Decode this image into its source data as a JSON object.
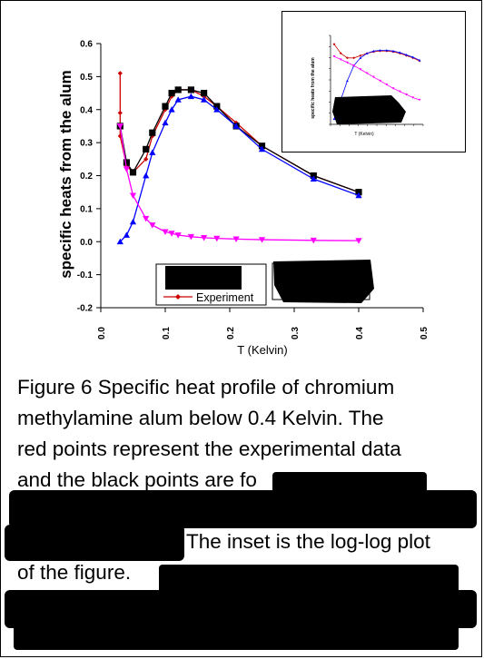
{
  "chart_data": [
    {
      "type": "line",
      "title": "",
      "xlabel": "T  (Kelvin)",
      "ylabel": "specific heats from the alum",
      "xlim": [
        0.0,
        0.5
      ],
      "ylim": [
        -0.2,
        0.6
      ],
      "x_ticks": [
        "0.0",
        "0.1",
        "0.2",
        "0.3",
        "0.4",
        "0.5"
      ],
      "y_ticks": [
        "-0.2",
        "-0.1",
        "0.0",
        "0.1",
        "0.2",
        "0.3",
        "0.4",
        "0.5",
        "0.6"
      ],
      "legend_placement": "bottom-center",
      "series": [
        {
          "name": "Experiment",
          "color": "#cc0000",
          "marker": "diamond",
          "x": [
            0.03,
            0.03,
            0.03,
            0.04,
            0.05,
            0.07,
            0.08,
            0.1,
            0.11,
            0.12,
            0.14,
            0.16,
            0.18,
            0.21,
            0.25,
            0.33,
            0.4
          ],
          "y": [
            0.51,
            0.39,
            0.32,
            0.23,
            0.21,
            0.25,
            0.32,
            0.4,
            0.44,
            0.46,
            0.46,
            0.44,
            0.41,
            0.36,
            0.29,
            0.2,
            0.15
          ]
        },
        {
          "color": "#000000",
          "marker": "square",
          "x": [
            0.03,
            0.04,
            0.05,
            0.07,
            0.08,
            0.1,
            0.11,
            0.12,
            0.14,
            0.16,
            0.18,
            0.21,
            0.25,
            0.33,
            0.4
          ],
          "y": [
            0.35,
            0.24,
            0.21,
            0.28,
            0.33,
            0.41,
            0.45,
            0.46,
            0.46,
            0.45,
            0.41,
            0.35,
            0.29,
            0.2,
            0.15
          ]
        },
        {
          "color": "#0000ff",
          "marker": "triangle-up",
          "x": [
            0.03,
            0.04,
            0.05,
            0.07,
            0.08,
            0.1,
            0.11,
            0.12,
            0.14,
            0.16,
            0.18,
            0.21,
            0.25,
            0.33,
            0.4
          ],
          "y": [
            0.0,
            0.02,
            0.06,
            0.2,
            0.27,
            0.36,
            0.4,
            0.43,
            0.44,
            0.43,
            0.4,
            0.35,
            0.28,
            0.19,
            0.14
          ]
        },
        {
          "color": "#ff00ff",
          "marker": "triangle-down",
          "x": [
            0.03,
            0.04,
            0.05,
            0.07,
            0.08,
            0.1,
            0.11,
            0.12,
            0.14,
            0.16,
            0.18,
            0.21,
            0.25,
            0.33,
            0.4
          ],
          "y": [
            0.35,
            0.22,
            0.14,
            0.07,
            0.05,
            0.03,
            0.025,
            0.02,
            0.015,
            0.012,
            0.01,
            0.008,
            0.006,
            0.004,
            0.003
          ]
        }
      ]
    },
    {
      "type": "line",
      "title": "",
      "ylabel": "specific heats from the alum",
      "xlabel": "T (Kelvin)",
      "log_scale": true,
      "series": [
        {
          "color": "#cc0000",
          "marker": "diamond",
          "values": [
            0.98,
            0.86,
            0.8,
            0.8,
            0.83,
            0.86,
            0.88,
            0.89,
            0.89,
            0.88,
            0.86,
            0.83,
            0.8,
            0.76
          ]
        },
        {
          "color": "#0000ff",
          "marker": "triangle-up",
          "values": [
            0.0,
            0.25,
            0.5,
            0.7,
            0.8,
            0.86,
            0.89,
            0.9,
            0.9,
            0.89,
            0.87,
            0.84,
            0.81,
            0.77
          ]
        },
        {
          "color": "#ff00ff",
          "marker": "triangle-down",
          "values": [
            0.82,
            0.78,
            0.74,
            0.7,
            0.65,
            0.6,
            0.55,
            0.5,
            0.45,
            0.4,
            0.36,
            0.32,
            0.28,
            0.25
          ]
        }
      ]
    }
  ],
  "caption": {
    "line1": "Figure 6   Specific heat profile of chromium",
    "line2": "methylamine alum below 0.4 Kelvin. The",
    "line3": "red points represent the experimental data",
    "line4": "and the black points are fo",
    "line6": "The inset is the log-log plot",
    "line7": "of the figure."
  }
}
